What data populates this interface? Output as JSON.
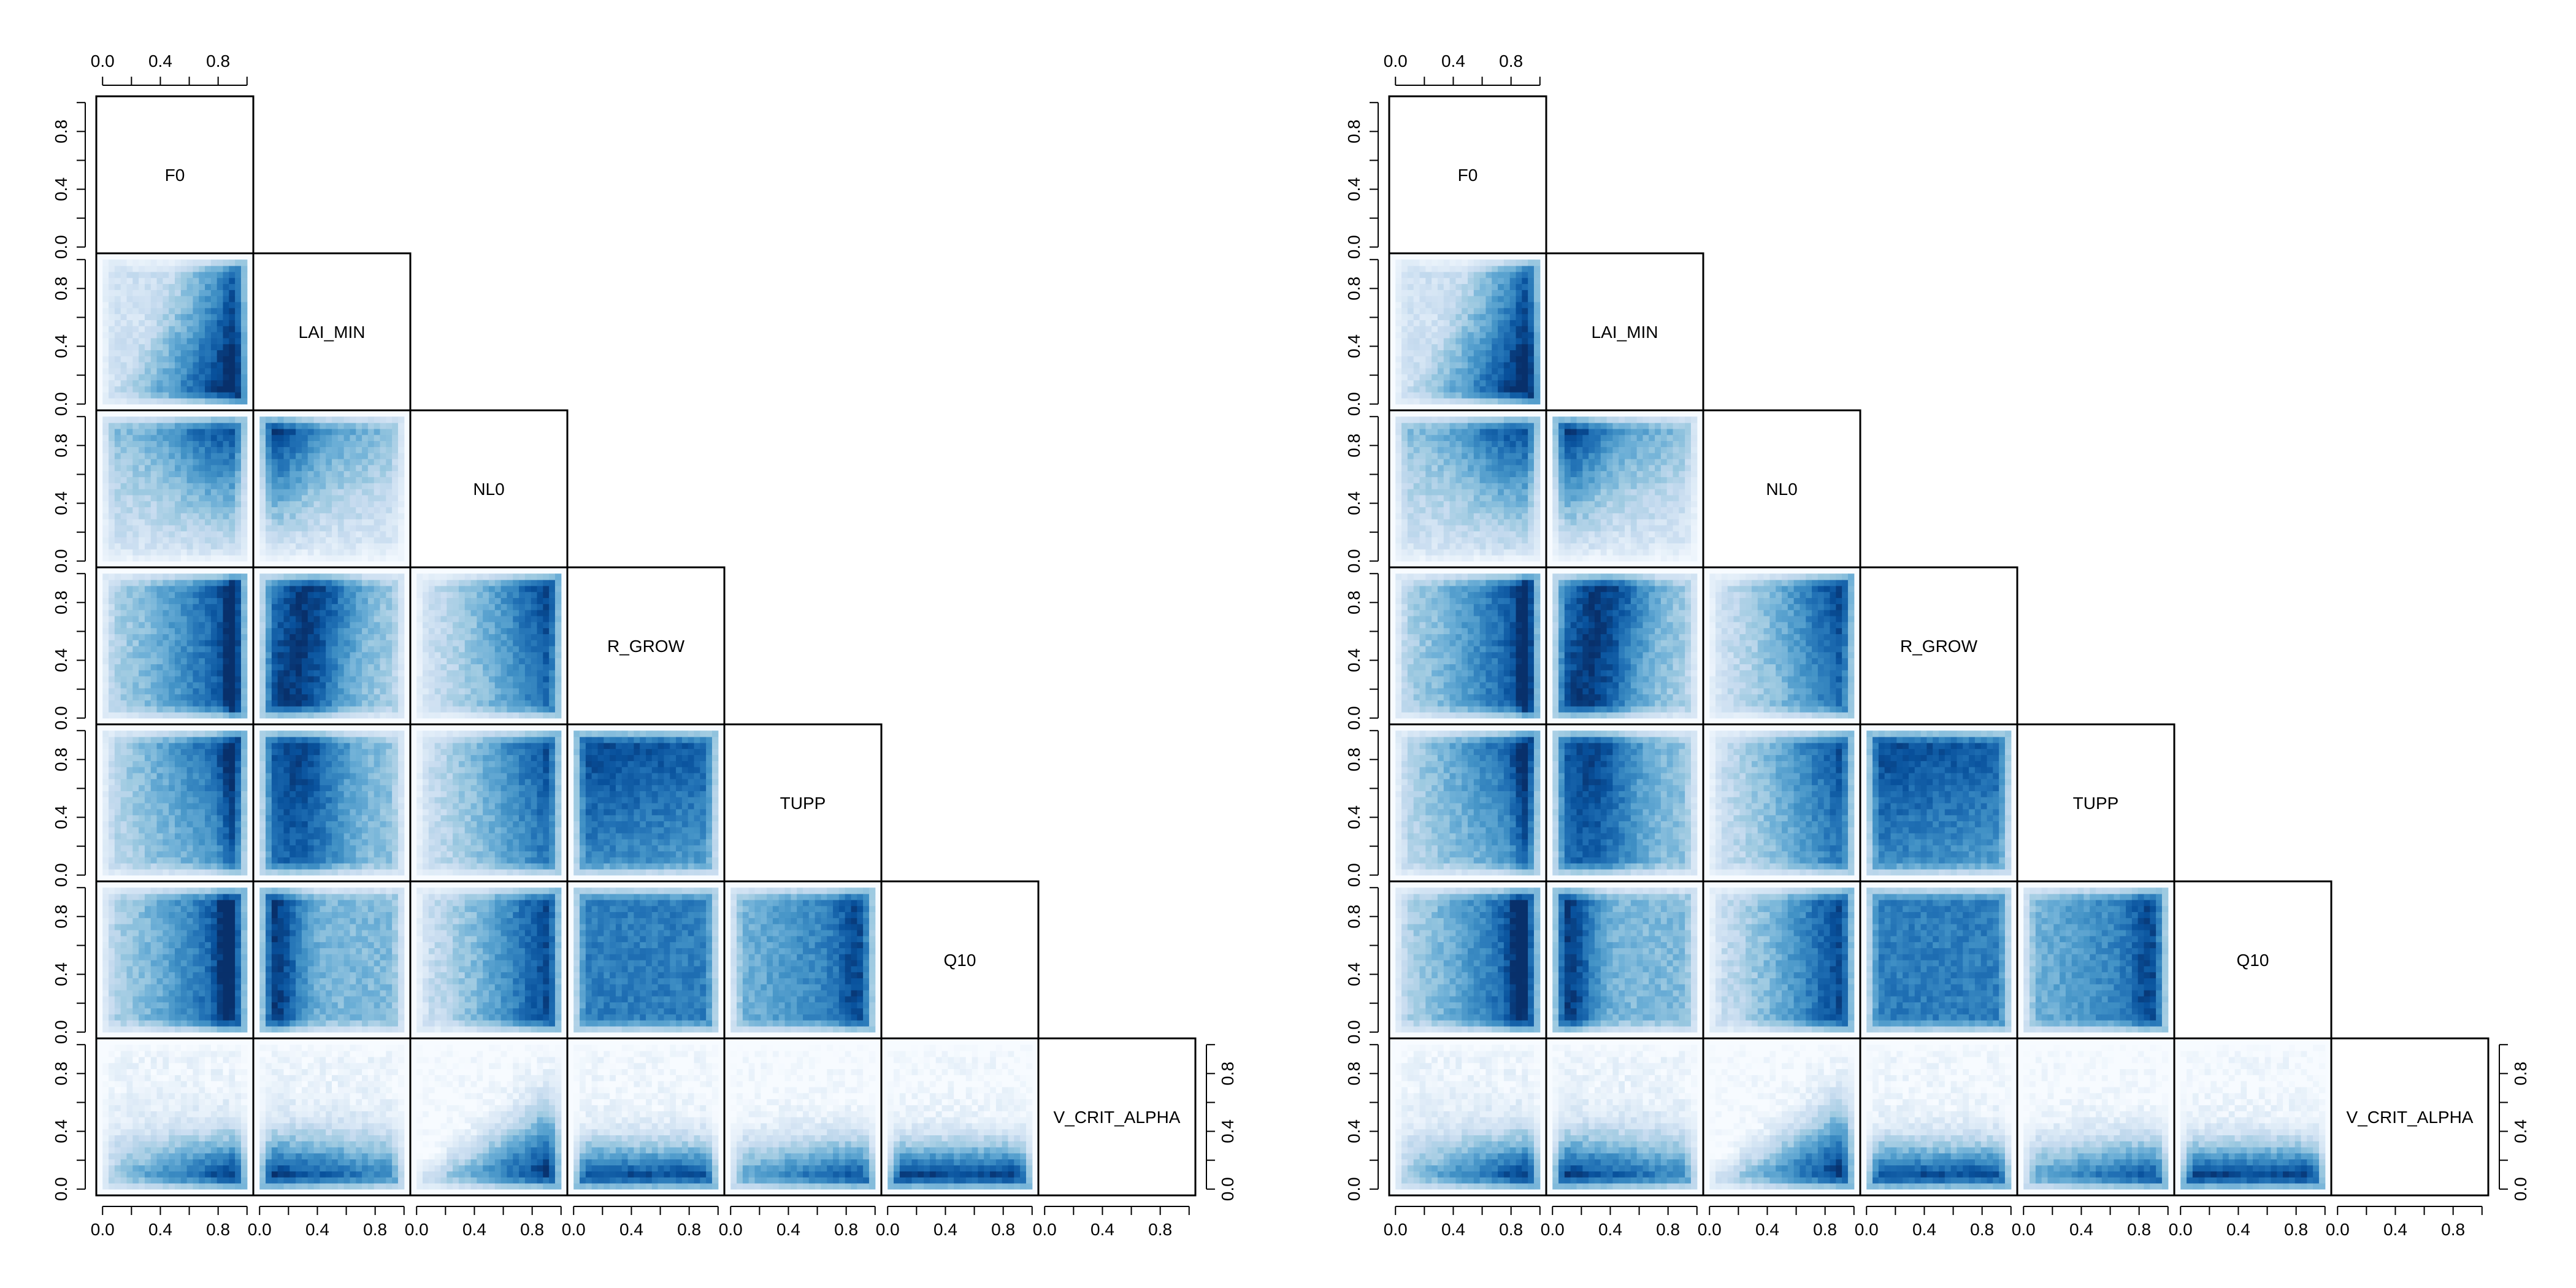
{
  "chart_data": [
    {
      "type": "heatmap",
      "layout": "pairs-lower-triangle",
      "variables": [
        "F0",
        "LAI_MIN",
        "NL0",
        "R_GROW",
        "TUPP",
        "Q10",
        "V_CRIT_ALPHA"
      ],
      "tick_labels": [
        "0.0",
        "0.4",
        "0.8"
      ],
      "axis_range": [
        0,
        1
      ],
      "color_scale": [
        "#f7fbff",
        "#deebf7",
        "#c6dbef",
        "#9ecae1",
        "#6baed6",
        "#4292c6",
        "#2171b5",
        "#08519c",
        "#08306b"
      ],
      "note": "density patterns in each cell approximated from visual appearance; x = column variable, y = row variable, values normalized to [0,1]"
    },
    {
      "type": "heatmap",
      "layout": "pairs-lower-triangle",
      "variables": [
        "F0",
        "LAI_MIN",
        "NL0",
        "R_GROW",
        "TUPP",
        "Q10",
        "V_CRIT_ALPHA"
      ],
      "tick_labels": [
        "0.0",
        "0.4",
        "0.8"
      ],
      "axis_range": [
        0,
        1
      ],
      "color_scale": [
        "#f7fbff",
        "#deebf7",
        "#c6dbef",
        "#9ecae1",
        "#6baed6",
        "#4292c6",
        "#2171b5",
        "#08519c",
        "#08306b"
      ],
      "note": "density patterns in each cell approximated from visual appearance; x = column variable, y = row variable, values normalized to [0,1]"
    }
  ]
}
